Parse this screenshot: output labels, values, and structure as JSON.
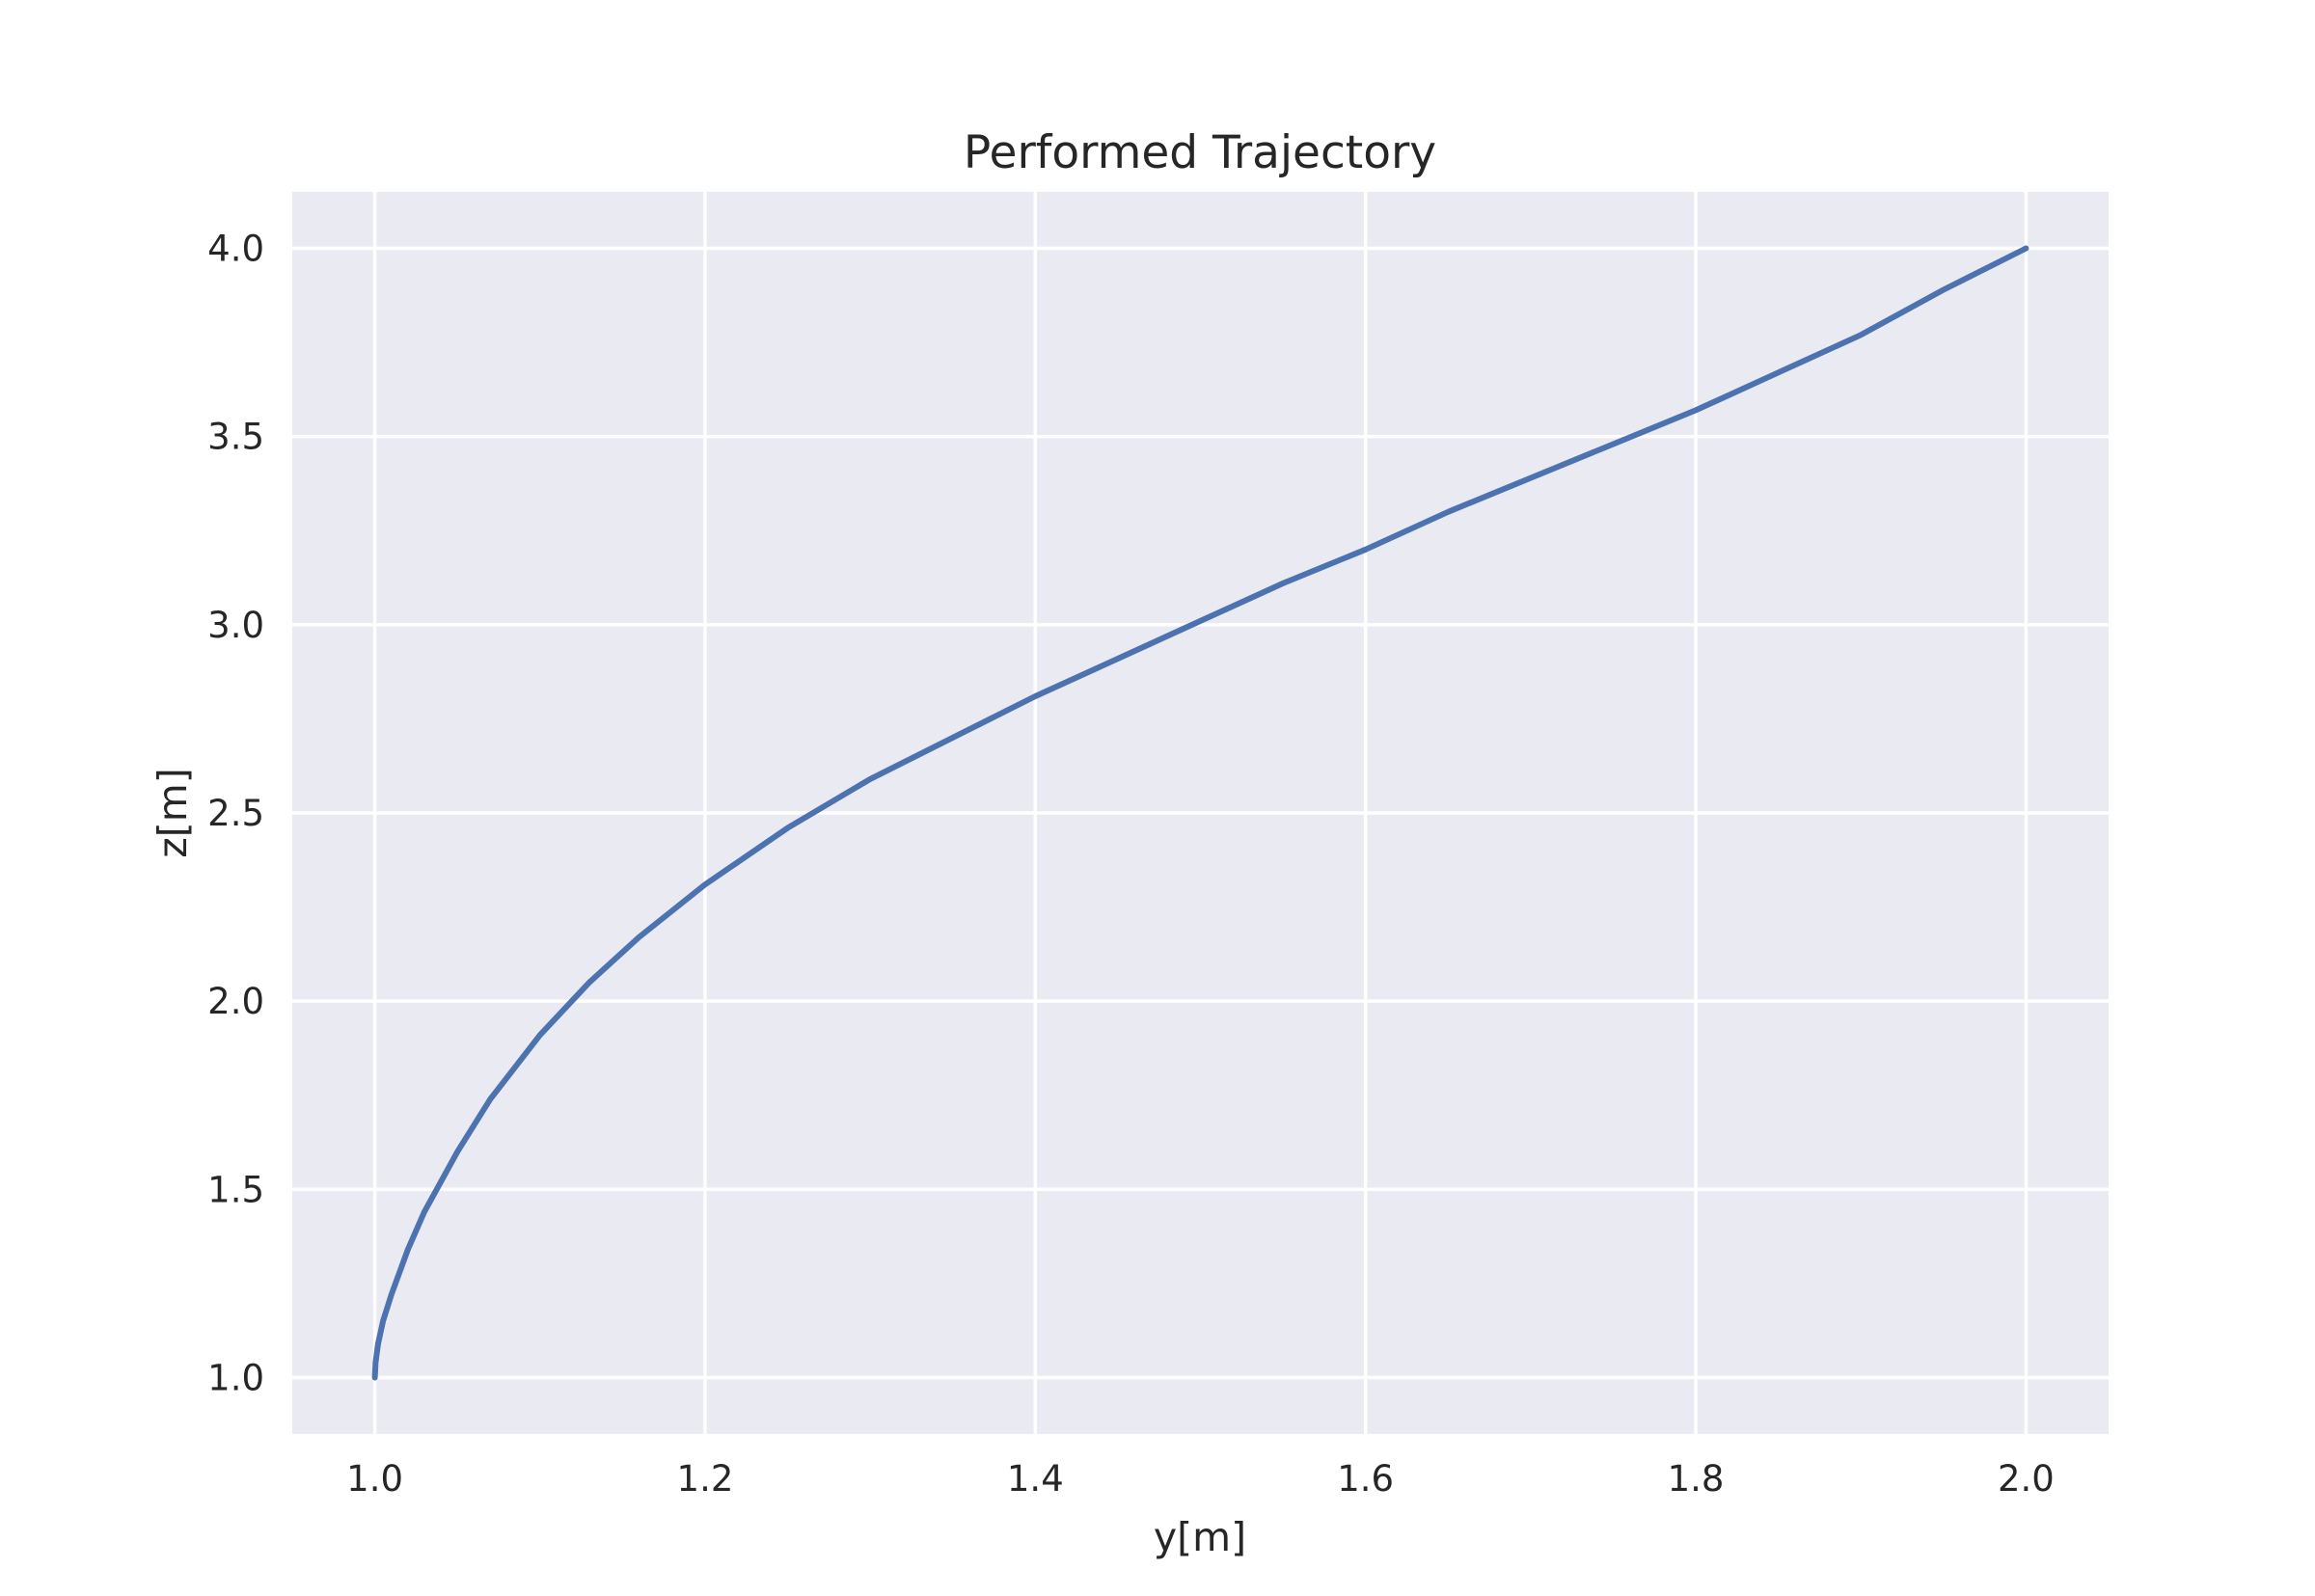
{
  "chart_data": {
    "type": "line",
    "title": "Performed Trajectory",
    "xlabel": "y[m]",
    "ylabel": "z[m]",
    "xlim": [
      0.95,
      2.05
    ],
    "ylim": [
      0.85,
      4.15
    ],
    "xticks": [
      1.0,
      1.2,
      1.4,
      1.6,
      1.8,
      2.0
    ],
    "xtick_labels": [
      "1.0",
      "1.2",
      "1.4",
      "1.6",
      "1.8",
      "2.0"
    ],
    "yticks": [
      1.0,
      1.5,
      2.0,
      2.5,
      3.0,
      3.5,
      4.0
    ],
    "ytick_labels": [
      "1.0",
      "1.5",
      "2.0",
      "2.5",
      "3.0",
      "3.5",
      "4.0"
    ],
    "grid": true,
    "legend": "none",
    "colors": {
      "background": "#eaeaf2",
      "grid": "#ffffff",
      "line": "#4c72b0"
    },
    "series": [
      {
        "x": [
          1.0,
          1.0005,
          1.002,
          1.005,
          1.01,
          1.02,
          1.03,
          1.05,
          1.07,
          1.1,
          1.13,
          1.16,
          1.2,
          1.25,
          1.3,
          1.35,
          1.4,
          1.45,
          1.5,
          1.55,
          1.6,
          1.65,
          1.7,
          1.75,
          1.8,
          1.85,
          1.9,
          1.95,
          2.0
        ],
        "y": [
          1.0,
          1.04,
          1.09,
          1.15,
          1.22,
          1.34,
          1.44,
          1.6,
          1.74,
          1.91,
          2.05,
          2.17,
          2.31,
          2.46,
          2.59,
          2.7,
          2.81,
          2.91,
          3.01,
          3.11,
          3.2,
          3.3,
          3.39,
          3.48,
          3.57,
          3.67,
          3.77,
          3.89,
          4.0
        ]
      }
    ]
  }
}
